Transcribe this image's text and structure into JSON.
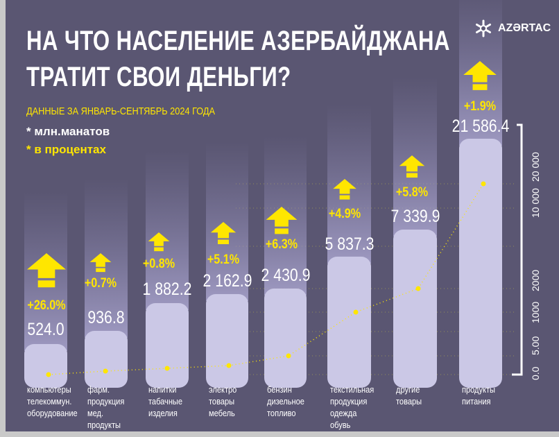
{
  "header": {
    "title_line1": "НА ЧТО НАСЕЛЕНИЕ АЗЕРБАЙДЖАНА",
    "title_line2": "ТРАТИТ СВОИ ДЕНЬГИ?",
    "subtitle": "ДАННЫЕ ЗА ЯНВАРЬ-СЕНТЯБРЬ 2024 ГОДА",
    "note_units": "* млн.манатов",
    "note_percent": "* в процентах"
  },
  "logo": {
    "text": "AZƏRTAC",
    "icon": "snowflake-emblem-icon"
  },
  "colors": {
    "background": "#5a5672",
    "bar": "#cbc8e6",
    "accent": "#ffe600",
    "text": "#ffffff"
  },
  "chart_data": {
    "type": "bar",
    "categories": [
      "компьютеры телекоммун. оборудование",
      "фарм. продукция мед. продукты",
      "напитки табачные изделия",
      "электро товары мебель",
      "бензин дизельное топливо",
      "текстильная продукция одежда обувь",
      "другие товары",
      "продукты питания"
    ],
    "category_lines": [
      [
        "компьютеры",
        "телекоммун.",
        "оборудование"
      ],
      [
        "фарм.",
        "продукция",
        "мед.",
        "продукты"
      ],
      [
        "напитки",
        "табачные",
        "изделия"
      ],
      [
        "электро",
        "товары",
        "мебель"
      ],
      [
        "бензин",
        "дизельное",
        "топливо"
      ],
      [
        "текстильная",
        "продукция",
        "одежда",
        "обувь"
      ],
      [
        "другие",
        "товары"
      ],
      [
        "продукты",
        "питания"
      ]
    ],
    "values": [
      524.0,
      936.8,
      1882.2,
      2162.9,
      2430.9,
      5837.3,
      7339.9,
      21586.4
    ],
    "value_labels": [
      "524.0",
      "936.8",
      "1 882.2",
      "2 162.9",
      "2 430.9",
      "5 837.3",
      "7 339.9",
      "21 586.4"
    ],
    "growth_percent": [
      26.0,
      0.7,
      0.8,
      5.1,
      6.3,
      4.9,
      5.8,
      1.9
    ],
    "growth_labels": [
      "+26.0%",
      "+0.7%",
      "+0.8%",
      "+5.1%",
      "+6.3%",
      "+4.9%",
      "+5.8%",
      "+1.9%"
    ],
    "y_axis_ticks": [
      "0.0",
      "5.00",
      "1000",
      "2000",
      "10 000",
      "20 000"
    ],
    "y_scale": "non-linear",
    "units": "млн.манатов"
  }
}
